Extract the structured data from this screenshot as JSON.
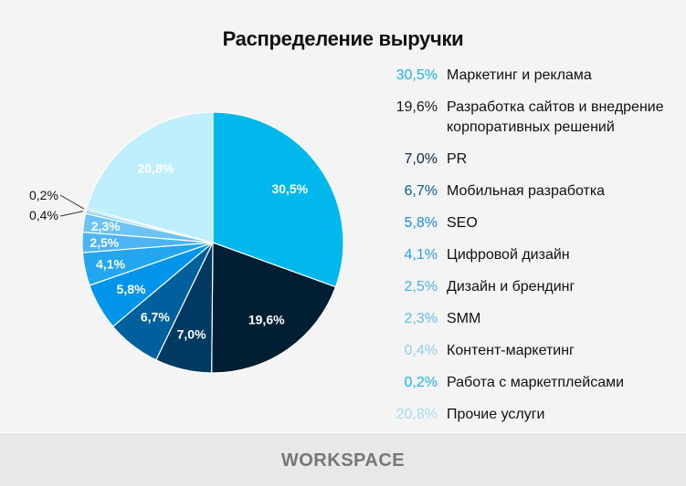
{
  "chart_data": {
    "type": "pie",
    "title": "Распределение выручки",
    "start": "12 o'clock, clockwise",
    "slices": [
      {
        "label": "Маркетинг и реклама",
        "value": 30.5,
        "text": "30,5%",
        "color": "#00b8ec",
        "legend_color": "#1ab5e8"
      },
      {
        "label": "Разработка сайтов и внедрение корпоративных решений",
        "value": 19.6,
        "text": "19,6%",
        "color": "#001f33",
        "legend_color": "#1a1a1a"
      },
      {
        "label": "PR",
        "value": 7.0,
        "text": "7,0%",
        "color": "#003a63",
        "legend_color": "#0a2a4a"
      },
      {
        "label": "Мобильная разработка",
        "value": 6.7,
        "text": "6,7%",
        "color": "#00609e",
        "legend_color": "#0a5a94"
      },
      {
        "label": "SEO",
        "value": 5.8,
        "text": "5,8%",
        "color": "#0095ea",
        "legend_color": "#1a8de0"
      },
      {
        "label": "Цифровой дизайн",
        "value": 4.1,
        "text": "4,1%",
        "color": "#22a6f0",
        "legend_color": "#2aa0e8"
      },
      {
        "label": "Дизайн и брендинг",
        "value": 2.5,
        "text": "2,5%",
        "color": "#4cb4f2",
        "legend_color": "#4ab0ec"
      },
      {
        "label": "SMM",
        "value": 2.3,
        "text": "2,3%",
        "color": "#6cc4f4",
        "legend_color": "#60bce8"
      },
      {
        "label": "Контент-маркетинг",
        "value": 0.4,
        "text": "0,4%",
        "color": "#8dd4f4",
        "legend_color": "#90d0ec"
      },
      {
        "label": "Работа с маркетплейсами",
        "value": 0.2,
        "text": "0,2%",
        "color": "#00b8ec",
        "legend_color": "#1ab5e8"
      },
      {
        "label": "Прочие услуги",
        "value": 20.8,
        "text": "20,8%",
        "color": "#bfeeff",
        "legend_color": "#a8dcf0"
      }
    ],
    "legend_placement": "right"
  },
  "footer": {
    "logo": "WORKSPACE"
  }
}
